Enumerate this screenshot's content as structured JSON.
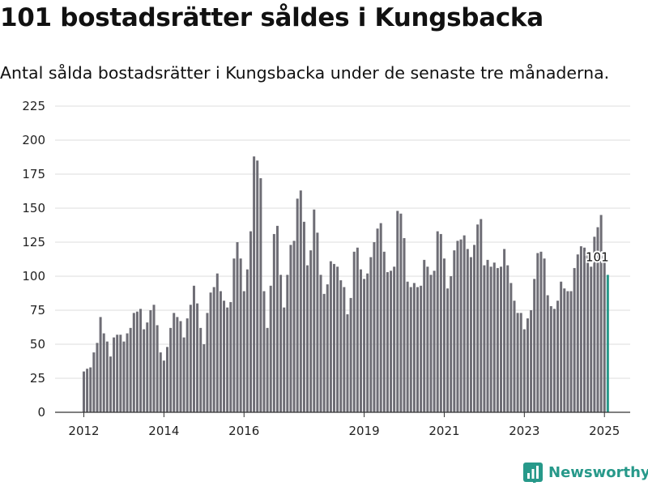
{
  "title": "101 bostadsrätter såldes i Kungsbacka",
  "subtitle": "Antal sålda bostadsrätter i Kungsbacka under de senaste tre månaderna.",
  "brand": "Newsworthy",
  "colors": {
    "bar": "#6e6d75",
    "highlight": "#27998a",
    "grid": "#dddddd",
    "axis": "#333333",
    "brand": "#27998a"
  },
  "chart_data": {
    "type": "bar",
    "x_start": "2012-01",
    "yticks": [
      0,
      25,
      50,
      75,
      100,
      125,
      150,
      175,
      200,
      225
    ],
    "xticks": [
      "2012",
      "2014",
      "2016",
      "2019",
      "2021",
      "2023",
      "2025"
    ],
    "ylim": [
      0,
      225
    ],
    "highlight_label": "101",
    "values": [
      30,
      32,
      33,
      44,
      51,
      70,
      58,
      52,
      41,
      55,
      57,
      57,
      52,
      58,
      62,
      73,
      74,
      76,
      61,
      66,
      75,
      79,
      64,
      44,
      38,
      48,
      62,
      73,
      70,
      67,
      55,
      69,
      79,
      93,
      80,
      62,
      50,
      73,
      88,
      92,
      102,
      89,
      82,
      77,
      81,
      113,
      125,
      113,
      89,
      105,
      133,
      188,
      185,
      172,
      89,
      62,
      93,
      131,
      137,
      101,
      77,
      101,
      123,
      126,
      157,
      163,
      140,
      108,
      119,
      149,
      132,
      101,
      87,
      94,
      111,
      109,
      107,
      97,
      92,
      72,
      84,
      118,
      121,
      105,
      98,
      102,
      114,
      125,
      135,
      139,
      118,
      103,
      104,
      107,
      148,
      146,
      128,
      96,
      92,
      95,
      92,
      93,
      112,
      107,
      101,
      104,
      133,
      131,
      113,
      91,
      100,
      119,
      126,
      127,
      130,
      120,
      114,
      123,
      138,
      142,
      108,
      112,
      107,
      110,
      106,
      107,
      120,
      108,
      95,
      82,
      73,
      73,
      61,
      69,
      75,
      98,
      117,
      118,
      113,
      86,
      78,
      76,
      82,
      96,
      91,
      89,
      89,
      106,
      116,
      122,
      121,
      118,
      107,
      129,
      136,
      145,
      112,
      101
    ],
    "grid": true,
    "legend": "none"
  }
}
